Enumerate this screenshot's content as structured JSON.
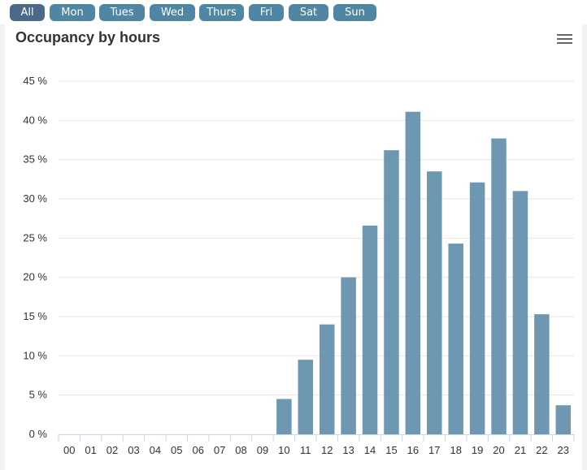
{
  "day_filter": {
    "buttons": [
      {
        "label": "All",
        "active": true
      },
      {
        "label": "Mon",
        "active": false
      },
      {
        "label": "Tues",
        "active": false
      },
      {
        "label": "Wed",
        "active": false
      },
      {
        "label": "Thurs",
        "active": false
      },
      {
        "label": "Fri",
        "active": false
      },
      {
        "label": "Sat",
        "active": false
      },
      {
        "label": "Sun",
        "active": false
      }
    ],
    "colors": {
      "active": "#4b6a8a",
      "inactive": "#4f86a3"
    }
  },
  "menu": {
    "icon": "hamburger-menu-icon"
  },
  "chart_data": {
    "type": "bar",
    "title": "Occupancy by hours",
    "categories": [
      "00",
      "01",
      "02",
      "03",
      "04",
      "05",
      "06",
      "07",
      "08",
      "09",
      "10",
      "11",
      "12",
      "13",
      "14",
      "15",
      "16",
      "17",
      "18",
      "19",
      "20",
      "21",
      "22",
      "23"
    ],
    "values": [
      0,
      0,
      0,
      0,
      0,
      0,
      0,
      0,
      0,
      0,
      4.5,
      9.5,
      14,
      20,
      26.6,
      36.2,
      41.1,
      33.5,
      24.3,
      32.1,
      37.7,
      31,
      15.3,
      3.7
    ],
    "y_ticks": [
      "0 %",
      "5 %",
      "10 %",
      "15 %",
      "20 %",
      "25 %",
      "30 %",
      "35 %",
      "40 %",
      "45 %"
    ],
    "ylim": [
      0,
      45
    ],
    "y_unit": "%",
    "xlabel": "",
    "ylabel": "",
    "grid": true,
    "legend": false,
    "bar_color": "#5e8ca9"
  }
}
